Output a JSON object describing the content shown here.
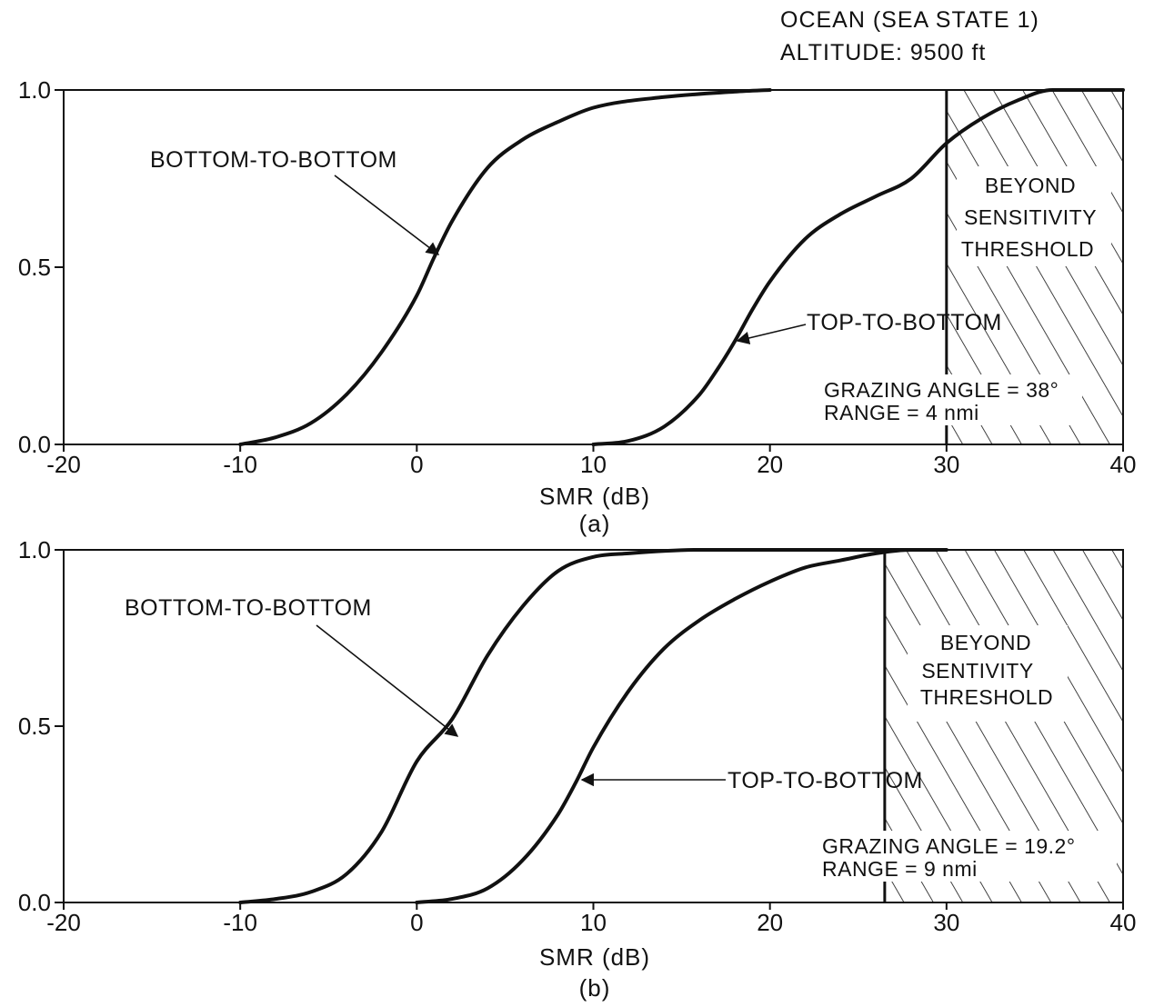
{
  "header": {
    "line1": "OCEAN (SEA STATE 1)",
    "line2": "ALTITUDE: 9500 ft"
  },
  "chart_data": [
    {
      "type": "line",
      "panel_label": "(a)",
      "xlabel": "SMR (dB)",
      "ylabel": "",
      "xlim": [
        -20,
        40
      ],
      "ylim": [
        0,
        1
      ],
      "x_ticks": [
        -20,
        -10,
        0,
        10,
        20,
        30,
        40
      ],
      "y_ticks": [
        0.0,
        0.5,
        1.0
      ],
      "x_tick_labels": [
        "-20",
        "-10",
        "0",
        "10",
        "20",
        "30",
        "40"
      ],
      "y_tick_labels": [
        "0.0",
        "0.5",
        "1.0"
      ],
      "grid": false,
      "series": [
        {
          "name": "BOTTOM-TO-BOTTOM",
          "x": [
            -10,
            -8,
            -6,
            -4,
            -2,
            0,
            1,
            2,
            4,
            6,
            8,
            10,
            14,
            18,
            20
          ],
          "y": [
            0.0,
            0.02,
            0.06,
            0.14,
            0.26,
            0.42,
            0.53,
            0.63,
            0.78,
            0.86,
            0.91,
            0.95,
            0.98,
            0.995,
            1.0
          ]
        },
        {
          "name": "TOP-TO-BOTTOM",
          "x": [
            10,
            12,
            14,
            16,
            17,
            18,
            19,
            20,
            22,
            24,
            26,
            28,
            30,
            32,
            34,
            36,
            38,
            40
          ],
          "y": [
            0.0,
            0.01,
            0.05,
            0.14,
            0.21,
            0.29,
            0.38,
            0.46,
            0.58,
            0.65,
            0.7,
            0.75,
            0.85,
            0.92,
            0.97,
            1.0,
            1.0,
            1.0
          ]
        }
      ],
      "shaded_region": {
        "x_start": 30,
        "x_end": 40,
        "label_lines": [
          "BEYOND",
          "SENSITIVITY",
          "THRESHOLD"
        ]
      },
      "annotations": [
        "GRAZING ANGLE = 38°",
        "RANGE = 4 nmi"
      ]
    },
    {
      "type": "line",
      "panel_label": "(b)",
      "xlabel": "SMR (dB)",
      "ylabel": "",
      "xlim": [
        -20,
        40
      ],
      "ylim": [
        0,
        1
      ],
      "x_ticks": [
        -20,
        -10,
        0,
        10,
        20,
        30,
        40
      ],
      "y_ticks": [
        0.0,
        0.5,
        1.0
      ],
      "x_tick_labels": [
        "-20",
        "-10",
        "0",
        "10",
        "20",
        "30",
        "40"
      ],
      "y_tick_labels": [
        "0.0",
        "0.5",
        "1.0"
      ],
      "grid": false,
      "series": [
        {
          "name": "BOTTOM-TO-BOTTOM",
          "x": [
            -10,
            -8,
            -6,
            -4,
            -2,
            0,
            2,
            4,
            6,
            8,
            10,
            12,
            16,
            20,
            28
          ],
          "y": [
            0.0,
            0.01,
            0.03,
            0.08,
            0.2,
            0.4,
            0.52,
            0.7,
            0.84,
            0.94,
            0.98,
            0.99,
            1.0,
            1.0,
            1.0
          ]
        },
        {
          "name": "TOP-TO-BOTTOM",
          "x": [
            0,
            2,
            4,
            6,
            8,
            9,
            10,
            12,
            14,
            16,
            18,
            20,
            22,
            24,
            26,
            28,
            30
          ],
          "y": [
            0.0,
            0.01,
            0.04,
            0.12,
            0.25,
            0.34,
            0.44,
            0.6,
            0.72,
            0.8,
            0.86,
            0.91,
            0.95,
            0.97,
            0.99,
            1.0,
            1.0
          ]
        }
      ],
      "shaded_region": {
        "x_start": 26.5,
        "x_end": 40,
        "label_lines": [
          "BEYOND",
          "SENTIVITY",
          "THRESHOLD"
        ]
      },
      "annotations": [
        "GRAZING ANGLE = 19.2°",
        "RANGE = 9 nmi"
      ]
    }
  ]
}
